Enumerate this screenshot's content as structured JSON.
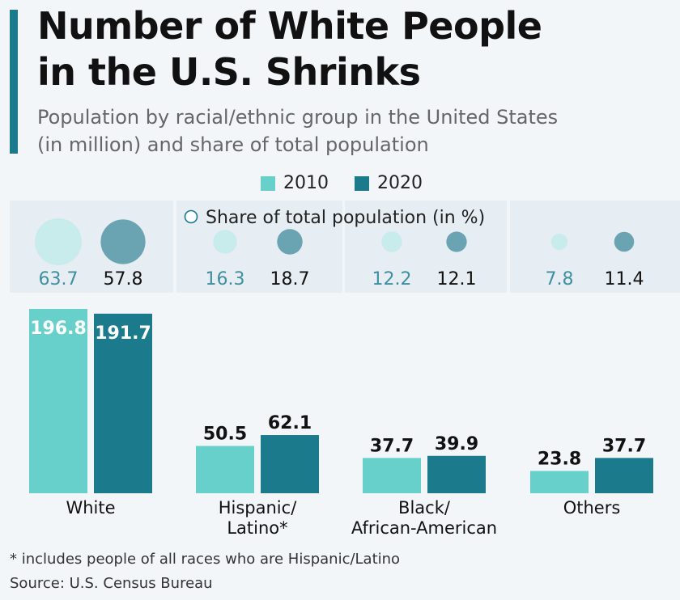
{
  "header": {
    "title_line1": "Number of White People",
    "title_line2": "in the U.S. Shrinks",
    "subtitle_line1": "Population by racial/ethnic group in the United States",
    "subtitle_line2": "(in million) and share of total population"
  },
  "colors": {
    "series_2010": "#67d0ca",
    "series_2020": "#1b7a8c",
    "bubble_2010": "#c8ebeb",
    "bubble_2020": "#6aa3b2",
    "share_2010_text": "#3f8fa1",
    "panel": "#e6edf3"
  },
  "chart_data": {
    "type": "bar",
    "title": "Number of White People in the U.S. Shrinks",
    "subtitle": "Population by racial/ethnic group in the United States (in million) and share of total population",
    "unit": "million",
    "ylim": [
      0,
      200
    ],
    "grid": false,
    "legend_position": "top-center",
    "categories": [
      {
        "lines": [
          "White"
        ]
      },
      {
        "lines": [
          "Hispanic/",
          "Latino*"
        ]
      },
      {
        "lines": [
          "Black/",
          "African-American"
        ]
      },
      {
        "lines": [
          "Others"
        ]
      }
    ],
    "series": [
      {
        "name": "2010",
        "values": [
          196.8,
          50.5,
          37.7,
          23.8
        ],
        "share": [
          63.7,
          16.3,
          12.2,
          7.8
        ]
      },
      {
        "name": "2020",
        "values": [
          191.7,
          62.1,
          39.9,
          37.7
        ],
        "share": [
          57.8,
          18.7,
          12.1,
          11.4
        ]
      }
    ],
    "share_label": "Share of total population (in %)"
  },
  "footer": {
    "footnote": "* includes people of all races who are Hispanic/Latino",
    "source": "Source: U.S. Census Bureau"
  }
}
